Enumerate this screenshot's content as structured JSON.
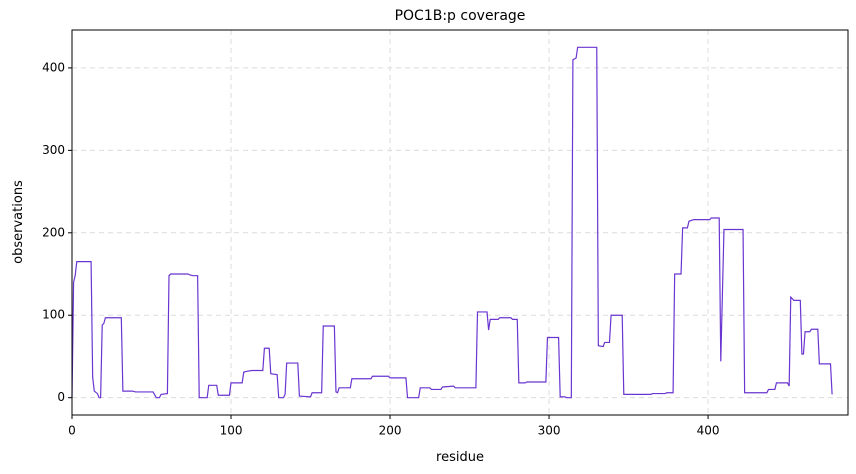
{
  "chart_data": {
    "type": "line",
    "title": "POC1B:p coverage",
    "xlabel": "residue",
    "ylabel": "observations",
    "x": [
      0,
      1,
      2,
      3,
      12,
      13,
      14,
      16,
      17,
      18,
      19,
      20,
      21,
      31,
      32,
      38,
      40,
      51,
      53,
      55,
      56,
      60,
      61,
      62,
      73,
      74,
      76,
      79,
      80,
      85,
      86,
      91,
      92,
      99,
      100,
      107,
      108,
      110,
      113,
      120,
      121,
      124,
      125,
      129,
      130,
      133,
      134,
      135,
      142,
      143,
      150,
      151,
      157,
      158,
      165,
      166,
      167,
      168,
      175,
      176,
      188,
      189,
      199,
      200,
      210,
      211,
      218,
      219,
      225,
      226,
      232,
      233,
      240,
      241,
      254,
      255,
      261,
      262,
      263,
      268,
      269,
      276,
      277,
      280,
      281,
      285,
      286,
      298,
      299,
      306,
      307,
      310,
      311,
      314,
      315,
      317,
      318,
      330,
      331,
      334,
      335,
      338,
      339,
      346,
      347,
      364,
      365,
      373,
      374,
      378,
      379,
      383,
      384,
      387,
      388,
      391,
      401,
      402,
      407,
      408,
      410,
      422,
      423,
      437,
      438,
      442,
      443,
      450,
      451,
      452,
      454,
      458,
      459,
      460,
      461,
      464,
      465,
      469,
      470,
      477,
      478
    ],
    "series": [
      {
        "name": "coverage",
        "color": "#6a35d0",
        "values": [
          0,
          140,
          148,
          165,
          165,
          25,
          8,
          5,
          0,
          0,
          88,
          90,
          97,
          97,
          8,
          8,
          7,
          7,
          0,
          0,
          4,
          5,
          148,
          150,
          150,
          149,
          148,
          148,
          0,
          0,
          15,
          15,
          3,
          3,
          18,
          18,
          31,
          32,
          33,
          33,
          60,
          60,
          29,
          28,
          0,
          0,
          4,
          42,
          42,
          2,
          1,
          6,
          6,
          87,
          87,
          7,
          6,
          12,
          12,
          23,
          23,
          26,
          26,
          24,
          24,
          0,
          0,
          12,
          12,
          10,
          10,
          13,
          14,
          12,
          12,
          104,
          104,
          82,
          95,
          95,
          97,
          97,
          95,
          95,
          18,
          18,
          19,
          19,
          73,
          73,
          1,
          1,
          0,
          0,
          410,
          412,
          425,
          425,
          63,
          62,
          67,
          67,
          100,
          100,
          4,
          4,
          5,
          5,
          6,
          6,
          150,
          150,
          206,
          206,
          214,
          216,
          216,
          218,
          218,
          44,
          204,
          204,
          6,
          6,
          10,
          10,
          18,
          18,
          14,
          122,
          118,
          118,
          53,
          53,
          80,
          80,
          83,
          83,
          41,
          41,
          4
        ]
      }
    ],
    "xlim": [
      0,
      488
    ],
    "ylim": [
      -21,
      446
    ],
    "xticks": [
      0,
      100,
      200,
      300,
      400
    ],
    "yticks": [
      0,
      100,
      200,
      300,
      400
    ],
    "grid": true
  }
}
